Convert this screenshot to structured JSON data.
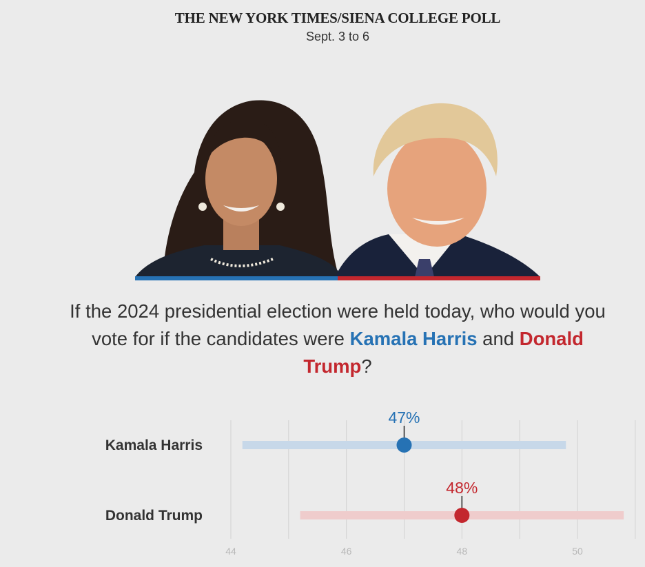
{
  "header": {
    "title": "THE NEW YORK TIMES/SIENA COLLEGE POLL",
    "subtitle": "Sept. 3 to 6"
  },
  "question": {
    "before": "If the 2024 presidential election were held today, who would you vote for if the candidates were ",
    "harris": "Kamala Harris",
    "middle": " and ",
    "trump": "Donald Trump",
    "after": "?"
  },
  "colors": {
    "harris": "#2672b4",
    "harris_range": "#c7d8e9",
    "trump": "#c3272e",
    "trump_range": "#efcccc",
    "grid": "#d2d2d2",
    "tick": "#b8b8b8"
  },
  "chart_data": {
    "type": "dot-range",
    "x_ticks": [
      44,
      46,
      48,
      50
    ],
    "xlim": [
      43.9,
      51.0
    ],
    "series": [
      {
        "name": "Kamala Harris",
        "value": 47,
        "label": "47%",
        "low": 44.2,
        "high": 49.8,
        "color_key": "harris"
      },
      {
        "name": "Donald Trump",
        "value": 48,
        "label": "48%",
        "low": 45.2,
        "high": 50.8,
        "color_key": "trump"
      }
    ]
  }
}
